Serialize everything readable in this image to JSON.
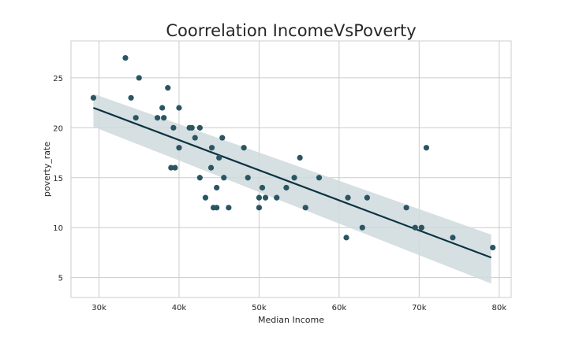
{
  "chart_data": {
    "type": "scatter",
    "title": "Coorrelation IncomeVsPoverty",
    "xlabel": "Median Income",
    "ylabel": "poverty_rate",
    "xlim": [
      26500,
      81500
    ],
    "ylim": [
      3,
      28.7
    ],
    "x_ticks": [
      30000,
      40000,
      50000,
      60000,
      70000,
      80000
    ],
    "x_tick_labels": [
      "30k",
      "40k",
      "50k",
      "60k",
      "70k",
      "80k"
    ],
    "y_ticks": [
      5,
      10,
      15,
      20,
      25
    ],
    "y_tick_labels": [
      "5",
      "10",
      "15",
      "20",
      "25"
    ],
    "grid": true,
    "point_color": "#2a5563",
    "line_color": "#0b3340",
    "band_color": "#cfd9dd",
    "points": [
      {
        "x": 29300,
        "y": 23
      },
      {
        "x": 33300,
        "y": 27
      },
      {
        "x": 34000,
        "y": 23
      },
      {
        "x": 34600,
        "y": 21
      },
      {
        "x": 35000,
        "y": 25
      },
      {
        "x": 37300,
        "y": 21
      },
      {
        "x": 37900,
        "y": 22
      },
      {
        "x": 38100,
        "y": 21
      },
      {
        "x": 38600,
        "y": 24
      },
      {
        "x": 39000,
        "y": 16
      },
      {
        "x": 39300,
        "y": 20
      },
      {
        "x": 39500,
        "y": 16
      },
      {
        "x": 40000,
        "y": 22
      },
      {
        "x": 40000,
        "y": 18
      },
      {
        "x": 41300,
        "y": 20
      },
      {
        "x": 41600,
        "y": 20
      },
      {
        "x": 42000,
        "y": 19
      },
      {
        "x": 42600,
        "y": 15
      },
      {
        "x": 42600,
        "y": 20
      },
      {
        "x": 43300,
        "y": 13
      },
      {
        "x": 44000,
        "y": 16
      },
      {
        "x": 44100,
        "y": 18
      },
      {
        "x": 44300,
        "y": 12
      },
      {
        "x": 44700,
        "y": 12
      },
      {
        "x": 44700,
        "y": 14
      },
      {
        "x": 45000,
        "y": 17
      },
      {
        "x": 45400,
        "y": 19
      },
      {
        "x": 45600,
        "y": 15
      },
      {
        "x": 46200,
        "y": 12
      },
      {
        "x": 48100,
        "y": 18
      },
      {
        "x": 48600,
        "y": 15
      },
      {
        "x": 50000,
        "y": 13
      },
      {
        "x": 50000,
        "y": 12
      },
      {
        "x": 50400,
        "y": 14
      },
      {
        "x": 50800,
        "y": 13
      },
      {
        "x": 52200,
        "y": 13
      },
      {
        "x": 53400,
        "y": 14
      },
      {
        "x": 54400,
        "y": 15
      },
      {
        "x": 55100,
        "y": 17
      },
      {
        "x": 55800,
        "y": 12
      },
      {
        "x": 57500,
        "y": 15
      },
      {
        "x": 60900,
        "y": 9
      },
      {
        "x": 61100,
        "y": 13
      },
      {
        "x": 62900,
        "y": 10
      },
      {
        "x": 63500,
        "y": 13
      },
      {
        "x": 68400,
        "y": 12
      },
      {
        "x": 69500,
        "y": 10
      },
      {
        "x": 70300,
        "y": 10
      },
      {
        "x": 70900,
        "y": 18
      },
      {
        "x": 74200,
        "y": 9
      },
      {
        "x": 79200,
        "y": 8
      }
    ],
    "regression": {
      "x": [
        29300,
        79000
      ],
      "y": [
        22,
        7
      ],
      "band_upper": [
        23.4,
        9.3
      ],
      "band_lower": [
        20.1,
        4.4
      ]
    }
  }
}
